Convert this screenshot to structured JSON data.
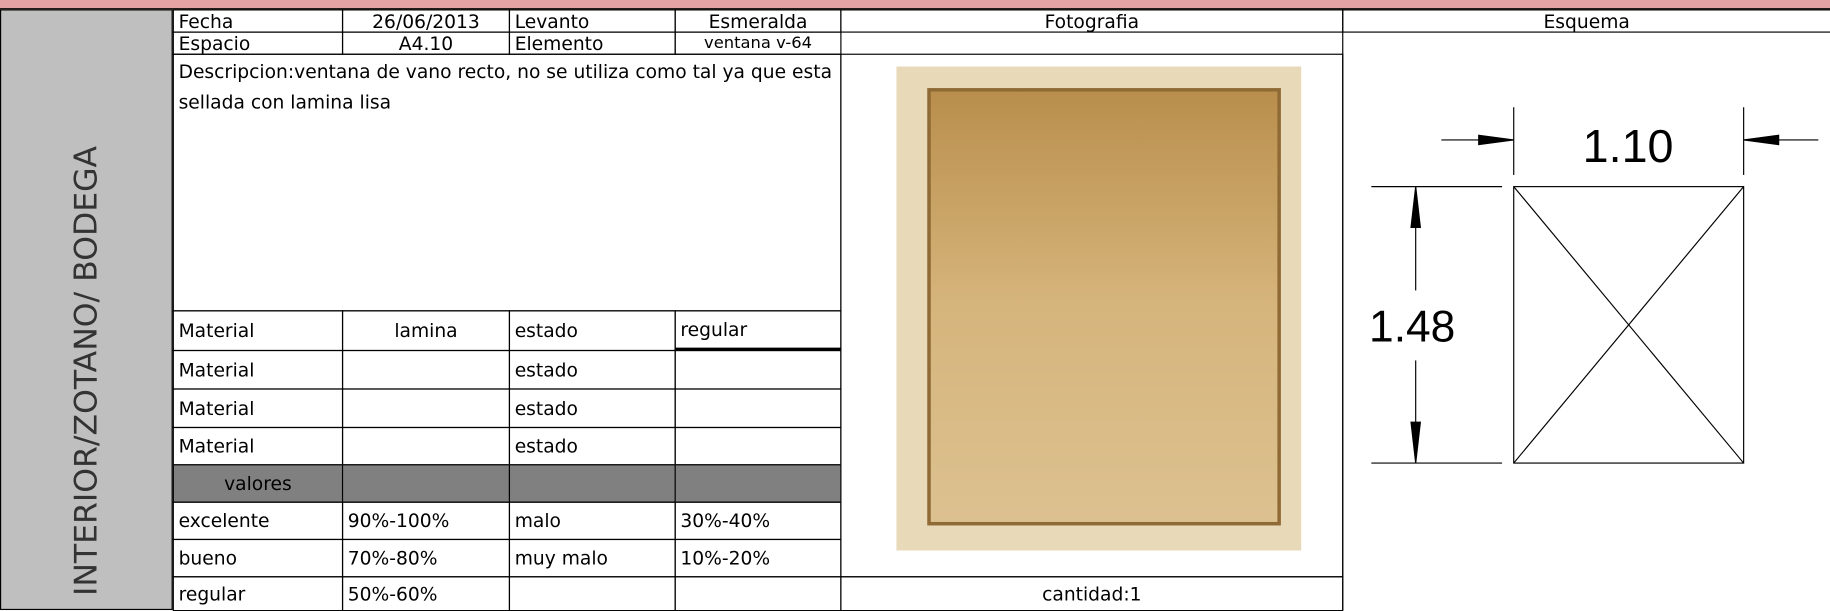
{
  "side_label": "INTERIOR/ZOTANO/ BODEGA",
  "table": {
    "rows": [
      [
        "Fecha",
        "26/06/2013",
        "Levanto",
        "Esmeralda"
      ],
      [
        "Espacio",
        "A4.10",
        "Elemento",
        "ventana v-64"
      ]
    ]
  },
  "description": "Descripcion:ventana de vano recto, no se utiliza como tal ya que esta sellada con lamina lisa",
  "materials": [
    {
      "label": "Material",
      "value": "lamina",
      "state_label": "estado",
      "state": "regular"
    },
    {
      "label": "Material",
      "state_label": "estado"
    },
    {
      "label": "Material",
      "state_label": "estado"
    },
    {
      "label": "Material",
      "state_label": "estado"
    }
  ],
  "values_header": "valores",
  "scale": [
    [
      "excelente",
      "90%-100%",
      "malo",
      "30%-40%"
    ],
    [
      "bueno",
      "70%-80%",
      "muy malo",
      "10%-20%"
    ],
    [
      "regular",
      "50%-60%"
    ]
  ],
  "photo": {
    "label": "Fotografia",
    "quantity": "cantidad:1"
  },
  "schema": {
    "label": "Esquema",
    "width": "1.10",
    "height": "1.48"
  }
}
